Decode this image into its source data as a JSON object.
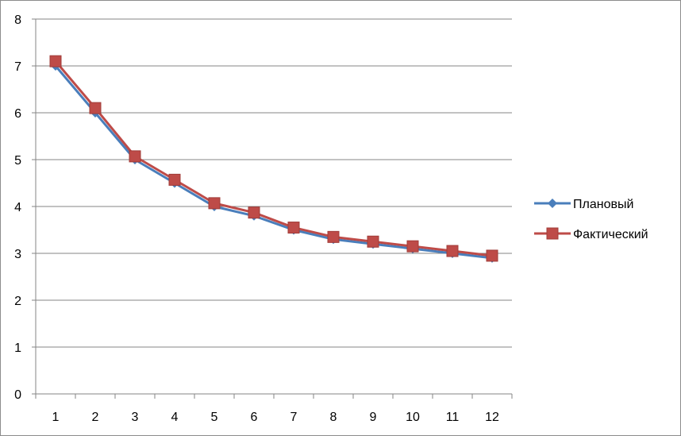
{
  "chart_data": {
    "type": "line",
    "title": "",
    "xlabel": "",
    "ylabel": "",
    "x": [
      "1",
      "2",
      "3",
      "4",
      "5",
      "6",
      "7",
      "8",
      "9",
      "10",
      "11",
      "12"
    ],
    "ylim": [
      0,
      8
    ],
    "yticks": [
      "0",
      "1",
      "2",
      "3",
      "4",
      "5",
      "6",
      "7",
      "8"
    ],
    "grid": true,
    "legend_position": "right",
    "series": [
      {
        "name": "Плановый",
        "color": "#4a7ebb",
        "marker": "diamond",
        "values": [
          7.0,
          6.0,
          5.0,
          4.5,
          4.0,
          3.8,
          3.5,
          3.3,
          3.2,
          3.1,
          3.0,
          2.9
        ]
      },
      {
        "name": "Фактический",
        "color": "#be4b48",
        "marker": "square",
        "values": [
          7.1,
          6.1,
          5.07,
          4.57,
          4.07,
          3.87,
          3.55,
          3.35,
          3.25,
          3.15,
          3.05,
          2.95
        ]
      }
    ]
  }
}
